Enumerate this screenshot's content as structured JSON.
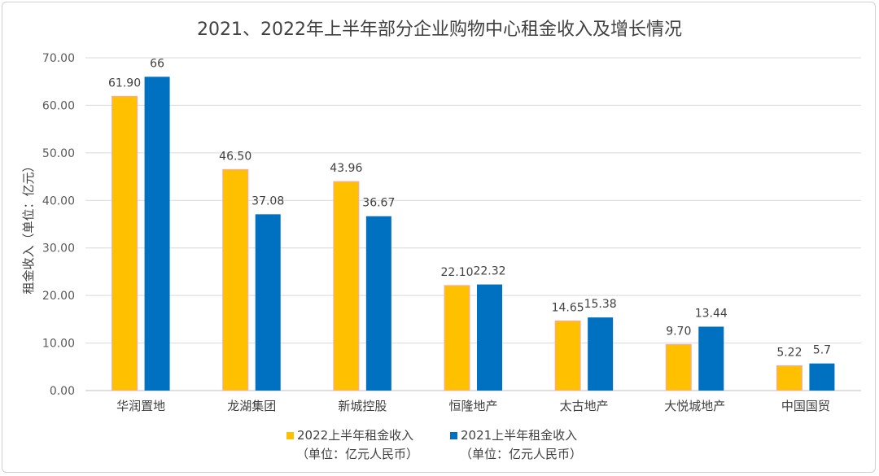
{
  "chart_data": {
    "type": "bar",
    "title": "2021、2022年上半年部分企业购物中心租金收入及增长情况",
    "ylabel": "租金收入（单位：亿元）",
    "xlabel": "",
    "ylim": [
      0,
      70
    ],
    "ytick_step": 10,
    "y_tick_labels": [
      "0.00",
      "10.00",
      "20.00",
      "30.00",
      "40.00",
      "50.00",
      "60.00",
      "70.00"
    ],
    "grid": true,
    "legend_position": "bottom",
    "categories": [
      "华润置地",
      "龙湖集团",
      "新城控股",
      "恒隆地产",
      "太古地产",
      "大悦城地产",
      "中国国贸"
    ],
    "series": [
      {
        "name": "2022上半年租金收入",
        "name_line2": "（单位：亿元人民币）",
        "color": "#FFC000",
        "values": [
          61.9,
          46.5,
          43.96,
          22.1,
          14.65,
          9.7,
          5.22
        ],
        "labels": [
          "61.90",
          "46.50",
          "43.96",
          "22.10",
          "14.65",
          "9.70",
          "5.22"
        ]
      },
      {
        "name": "2021上半年租金收入",
        "name_line2": "（单位：亿元人民币）",
        "color": "#0070C0",
        "values": [
          66,
          37.08,
          36.67,
          22.32,
          15.38,
          13.44,
          5.7
        ],
        "labels": [
          "66",
          "37.08",
          "36.67",
          "22.32",
          "15.38",
          "13.44",
          "5.7"
        ]
      }
    ]
  }
}
